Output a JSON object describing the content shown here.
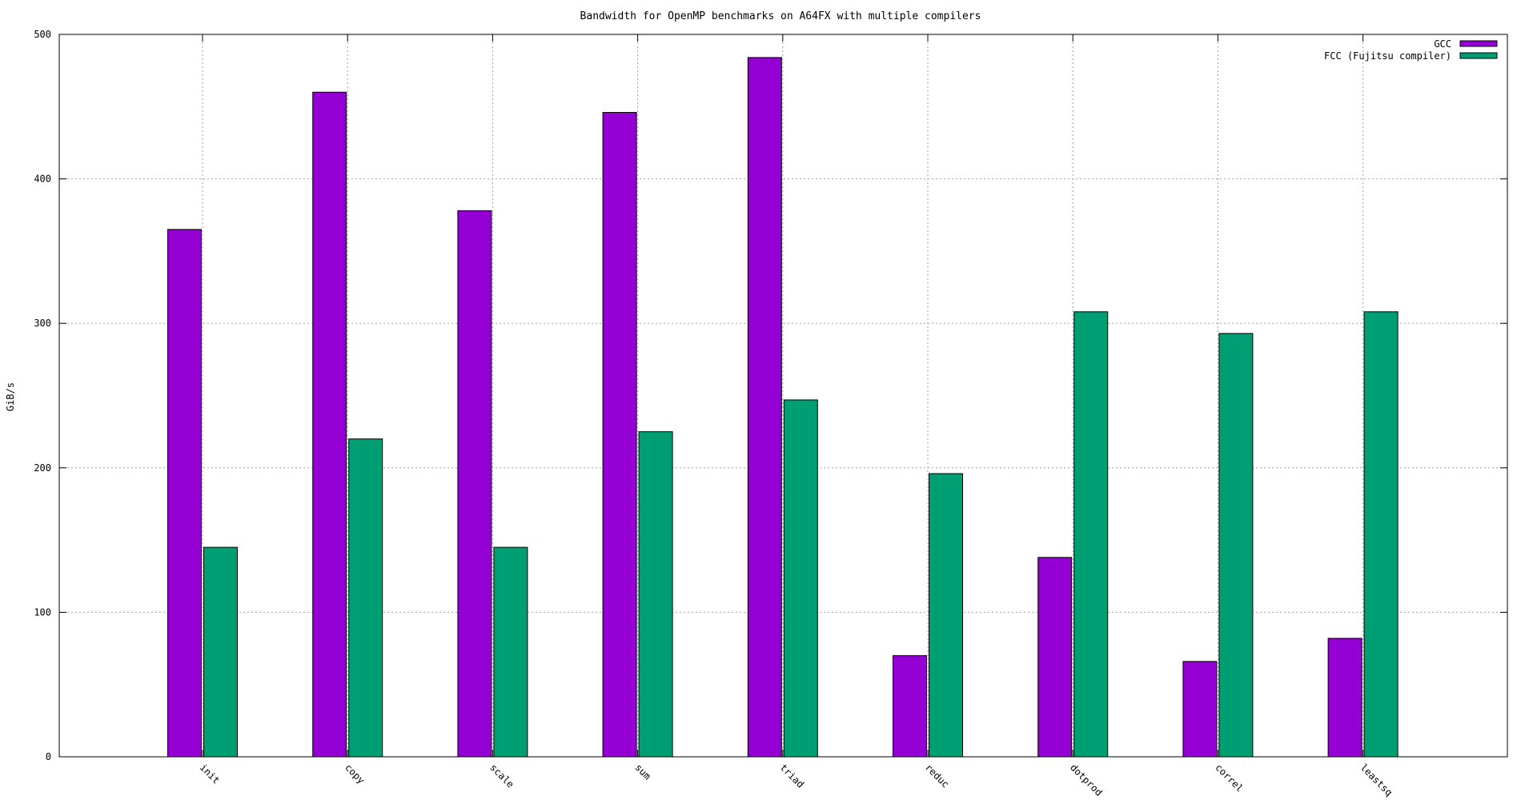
{
  "chart_data": {
    "type": "bar",
    "title": "Bandwidth for OpenMP benchmarks on A64FX with multiple compilers",
    "xlabel": "",
    "ylabel": "GiB/s",
    "ylim": [
      0,
      500
    ],
    "yticks": [
      0,
      100,
      200,
      300,
      400,
      500
    ],
    "grid": true,
    "legend_position": "top-right",
    "categories": [
      "init",
      "copy",
      "scale",
      "sum",
      "triad",
      "reduc",
      "dotprod",
      "correl",
      "leastsq"
    ],
    "series": [
      {
        "name": "GCC",
        "color": "#9400d3",
        "values": [
          365,
          460,
          378,
          446,
          484,
          70,
          138,
          66,
          82
        ]
      },
      {
        "name": "FCC (Fujitsu compiler)",
        "color": "#009e73",
        "values": [
          145,
          220,
          145,
          225,
          247,
          196,
          308,
          293,
          308
        ]
      }
    ]
  }
}
